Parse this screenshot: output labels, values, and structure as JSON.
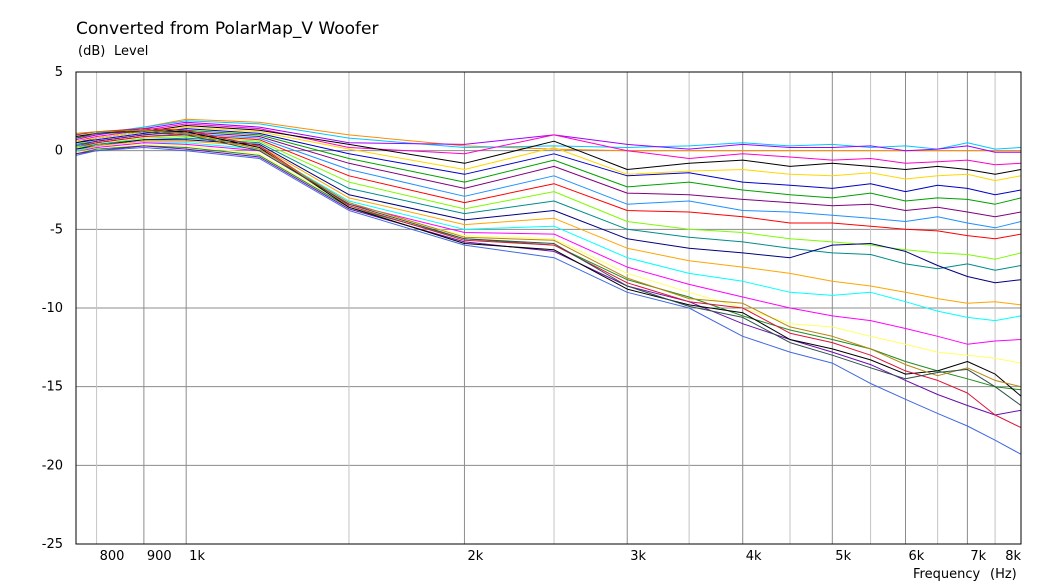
{
  "chart_data": {
    "type": "line",
    "title": "Converted from PolarMap_V Woofer",
    "ylabel_unit": "(dB)",
    "ylabel": "Level",
    "xlabel": "Frequency",
    "xlabel_unit": "(Hz)",
    "x_scale": "log",
    "xlim": [
      760,
      8000
    ],
    "ylim": [
      -25,
      5
    ],
    "x_ticks": [
      {
        "value": 800,
        "label": "800"
      },
      {
        "value": 900,
        "label": "900"
      },
      {
        "value": 1000,
        "label": "1k"
      },
      {
        "value": 2000,
        "label": "2k"
      },
      {
        "value": 3000,
        "label": "3k"
      },
      {
        "value": 4000,
        "label": "4k"
      },
      {
        "value": 5000,
        "label": "5k"
      },
      {
        "value": 6000,
        "label": "6k"
      },
      {
        "value": 7000,
        "label": "7k"
      },
      {
        "value": 8000,
        "label": "8k"
      }
    ],
    "y_ticks": [
      5,
      0,
      -5,
      -10,
      -15,
      -20,
      -25
    ],
    "x_gridlines": [
      800,
      900,
      1000,
      1500,
      2000,
      2500,
      3000,
      3500,
      4000,
      4500,
      5000,
      5500,
      6000,
      6500,
      7000,
      7500,
      8000
    ],
    "x_major_gridlines": [
      900,
      1000,
      2000,
      3000,
      4000,
      5000,
      6000,
      7000
    ],
    "grid": true,
    "legend": "none",
    "x": [
      760,
      800,
      900,
      1000,
      1200,
      1500,
      2000,
      2500,
      3000,
      3500,
      4000,
      4500,
      5000,
      5500,
      6000,
      6500,
      7000,
      7500,
      8000
    ],
    "series": [
      {
        "color": "#ff8c00",
        "values": [
          0.8,
          1.0,
          1.5,
          2.0,
          1.8,
          1.0,
          0.3,
          0.1,
          0,
          0,
          0,
          0,
          0,
          0,
          0,
          0,
          0,
          0,
          0
        ]
      },
      {
        "color": "#00c8ff",
        "values": [
          0.9,
          1.1,
          1.5,
          1.9,
          1.7,
          0.8,
          0.2,
          0.3,
          0.2,
          0.3,
          0.5,
          0.3,
          0.4,
          0.2,
          0.3,
          0.1,
          0.5,
          0.1,
          0.2
        ]
      },
      {
        "color": "#a000ff",
        "values": [
          0.7,
          1.0,
          1.4,
          1.8,
          1.5,
          0.5,
          0.4,
          1.0,
          0.4,
          0.1,
          0.4,
          0.2,
          0.2,
          0.3,
          0.0,
          0.1,
          0.3,
          -0.1,
          -0.1
        ]
      },
      {
        "color": "#ff00c8",
        "values": [
          0.6,
          0.9,
          1.3,
          1.7,
          1.4,
          0.2,
          -0.2,
          1.0,
          0.0,
          -0.5,
          -0.2,
          -0.4,
          -0.6,
          -0.5,
          -0.8,
          -0.7,
          -0.6,
          -0.9,
          -0.8
        ]
      },
      {
        "color": "#000000",
        "values": [
          0.5,
          0.8,
          1.2,
          1.6,
          1.3,
          0.4,
          -0.8,
          0.6,
          -1.2,
          -0.8,
          -0.6,
          -1.0,
          -0.8,
          -1.0,
          -1.2,
          -1.0,
          -1.2,
          -1.5,
          -1.2
        ]
      },
      {
        "color": "#ffd700",
        "values": [
          0.6,
          0.8,
          1.2,
          1.5,
          1.2,
          0.1,
          -1.2,
          0.2,
          -1.5,
          -1.3,
          -1.2,
          -1.5,
          -1.6,
          -1.4,
          -1.8,
          -1.6,
          -1.5,
          -1.9,
          -1.6
        ]
      },
      {
        "color": "#0000c8",
        "values": [
          0.5,
          0.7,
          1.1,
          1.4,
          1.1,
          -0.2,
          -1.5,
          -0.2,
          -1.6,
          -1.4,
          -2.0,
          -2.2,
          -2.4,
          -2.1,
          -2.6,
          -2.2,
          -2.4,
          -2.8,
          -2.5
        ]
      },
      {
        "color": "#00a000",
        "values": [
          0.4,
          0.6,
          1.0,
          1.3,
          1.0,
          -0.5,
          -2.0,
          -0.6,
          -2.3,
          -2.0,
          -2.5,
          -2.8,
          -3.0,
          -2.7,
          -3.2,
          -3.0,
          -3.1,
          -3.4,
          -3.0
        ]
      },
      {
        "color": "#800080",
        "values": [
          0.3,
          0.6,
          1.0,
          1.2,
          0.9,
          -0.8,
          -2.4,
          -1.0,
          -2.7,
          -2.8,
          -3.1,
          -3.3,
          -3.5,
          -3.4,
          -3.8,
          -3.6,
          -3.9,
          -4.2,
          -3.9
        ]
      },
      {
        "color": "#1e90ff",
        "values": [
          0.3,
          0.5,
          0.9,
          1.1,
          0.8,
          -1.2,
          -2.9,
          -1.6,
          -3.4,
          -3.2,
          -3.8,
          -3.9,
          -4.1,
          -4.3,
          -4.5,
          -4.2,
          -4.6,
          -4.9,
          -4.5
        ]
      },
      {
        "color": "#ff0000",
        "values": [
          0.2,
          0.5,
          0.9,
          1.0,
          0.7,
          -1.6,
          -3.3,
          -2.1,
          -3.8,
          -3.9,
          -4.2,
          -4.6,
          -4.6,
          -4.8,
          -5.0,
          -5.1,
          -5.4,
          -5.6,
          -5.3
        ]
      },
      {
        "color": "#7cfc00",
        "values": [
          0.2,
          0.4,
          0.8,
          0.9,
          0.6,
          -2.0,
          -3.7,
          -2.6,
          -4.5,
          -5.0,
          -5.2,
          -5.6,
          -5.8,
          -6.0,
          -6.3,
          -6.5,
          -6.6,
          -6.9,
          -6.5
        ]
      },
      {
        "color": "#008b8b",
        "values": [
          0.1,
          0.4,
          0.7,
          0.8,
          0.5,
          -2.4,
          -4.0,
          -3.2,
          -5.0,
          -5.5,
          -5.8,
          -6.2,
          -6.5,
          -6.6,
          -7.2,
          -7.5,
          -7.2,
          -7.6,
          -7.3
        ]
      },
      {
        "color": "#000080",
        "values": [
          0.1,
          0.3,
          0.7,
          0.7,
          0.4,
          -2.8,
          -4.4,
          -3.8,
          -5.6,
          -6.2,
          -6.5,
          -6.8,
          -6.0,
          -5.9,
          -6.4,
          -7.3,
          -8.0,
          -8.4,
          -8.2
        ]
      },
      {
        "color": "#ffa500",
        "values": [
          0.0,
          0.3,
          0.6,
          0.6,
          0.3,
          -3.0,
          -4.7,
          -4.3,
          -6.2,
          -7.0,
          -7.4,
          -7.8,
          -8.3,
          -8.6,
          -9.0,
          -9.4,
          -9.7,
          -9.6,
          -9.8
        ]
      },
      {
        "color": "#00ffff",
        "values": [
          0.0,
          0.2,
          0.5,
          0.5,
          0.1,
          -3.2,
          -5.0,
          -4.8,
          -6.8,
          -7.8,
          -8.3,
          -9.0,
          -9.2,
          -9.0,
          -9.6,
          -10.2,
          -10.6,
          -10.8,
          -10.5
        ]
      },
      {
        "color": "#ff00ff",
        "values": [
          -0.1,
          0.2,
          0.5,
          0.4,
          0.0,
          -3.4,
          -5.2,
          -5.3,
          -7.4,
          -8.5,
          -9.3,
          -10.0,
          -10.5,
          -10.8,
          -11.3,
          -11.8,
          -12.3,
          -12.1,
          -12.0
        ]
      },
      {
        "color": "#ffff66",
        "values": [
          -0.1,
          0.1,
          0.4,
          0.3,
          -0.2,
          -3.5,
          -5.4,
          -5.6,
          -7.8,
          -9.0,
          -10.0,
          -11.0,
          -11.2,
          -11.8,
          -12.3,
          -12.8,
          -13.0,
          -13.2,
          -13.5
        ]
      },
      {
        "color": "#228b22",
        "values": [
          -0.2,
          0.1,
          0.3,
          0.2,
          -0.3,
          -3.6,
          -5.6,
          -6.0,
          -8.2,
          -9.3,
          -10.5,
          -11.4,
          -12.0,
          -12.6,
          -13.4,
          -14.0,
          -14.5,
          -15.0,
          -15.2
        ]
      },
      {
        "color": "#6a0dad",
        "values": [
          -0.2,
          0.0,
          0.3,
          0.1,
          -0.4,
          -3.7,
          -5.8,
          -6.4,
          -8.6,
          -9.6,
          -11.0,
          -12.0,
          -12.8,
          -13.6,
          -14.6,
          -15.5,
          -16.2,
          -16.8,
          -16.5
        ]
      },
      {
        "color": "#4169e1",
        "values": [
          -0.3,
          0.0,
          0.2,
          0.0,
          -0.5,
          -3.8,
          -6.0,
          -6.8,
          -9.0,
          -10.0,
          -11.8,
          -12.8,
          -13.5,
          -14.8,
          -15.8,
          -16.7,
          -17.5,
          -18.4,
          -19.3
        ]
      },
      {
        "color": "#000000",
        "values": [
          0.9,
          1.1,
          1.3,
          1.2,
          0.2,
          -3.6,
          -5.9,
          -6.3,
          -8.8,
          -9.8,
          -10.3,
          -12.0,
          -12.6,
          -13.3,
          -14.2,
          -14.0,
          -13.4,
          -14.2,
          -15.6
        ]
      },
      {
        "color": "#dc143c",
        "values": [
          1.0,
          1.2,
          1.4,
          1.3,
          0.3,
          -3.5,
          -5.7,
          -6.0,
          -8.4,
          -9.6,
          -10.0,
          -11.6,
          -12.2,
          -13.0,
          -14.0,
          -14.6,
          -15.4,
          -16.8,
          -17.6
        ]
      },
      {
        "color": "#b8860b",
        "values": [
          1.1,
          1.2,
          1.3,
          1.1,
          0.1,
          -3.3,
          -5.5,
          -5.7,
          -8.1,
          -9.4,
          -9.7,
          -11.2,
          -11.8,
          -12.6,
          -13.6,
          -14.3,
          -13.8,
          -14.6,
          -15.0
        ]
      },
      {
        "color": "#2f4f4f",
        "values": [
          0.8,
          1.1,
          1.2,
          1.0,
          0.0,
          -3.4,
          -5.6,
          -5.9,
          -8.6,
          -9.9,
          -10.6,
          -12.2,
          -13.0,
          -13.8,
          -14.5,
          -14.1,
          -13.9,
          -15.0,
          -16.2
        ]
      }
    ]
  }
}
